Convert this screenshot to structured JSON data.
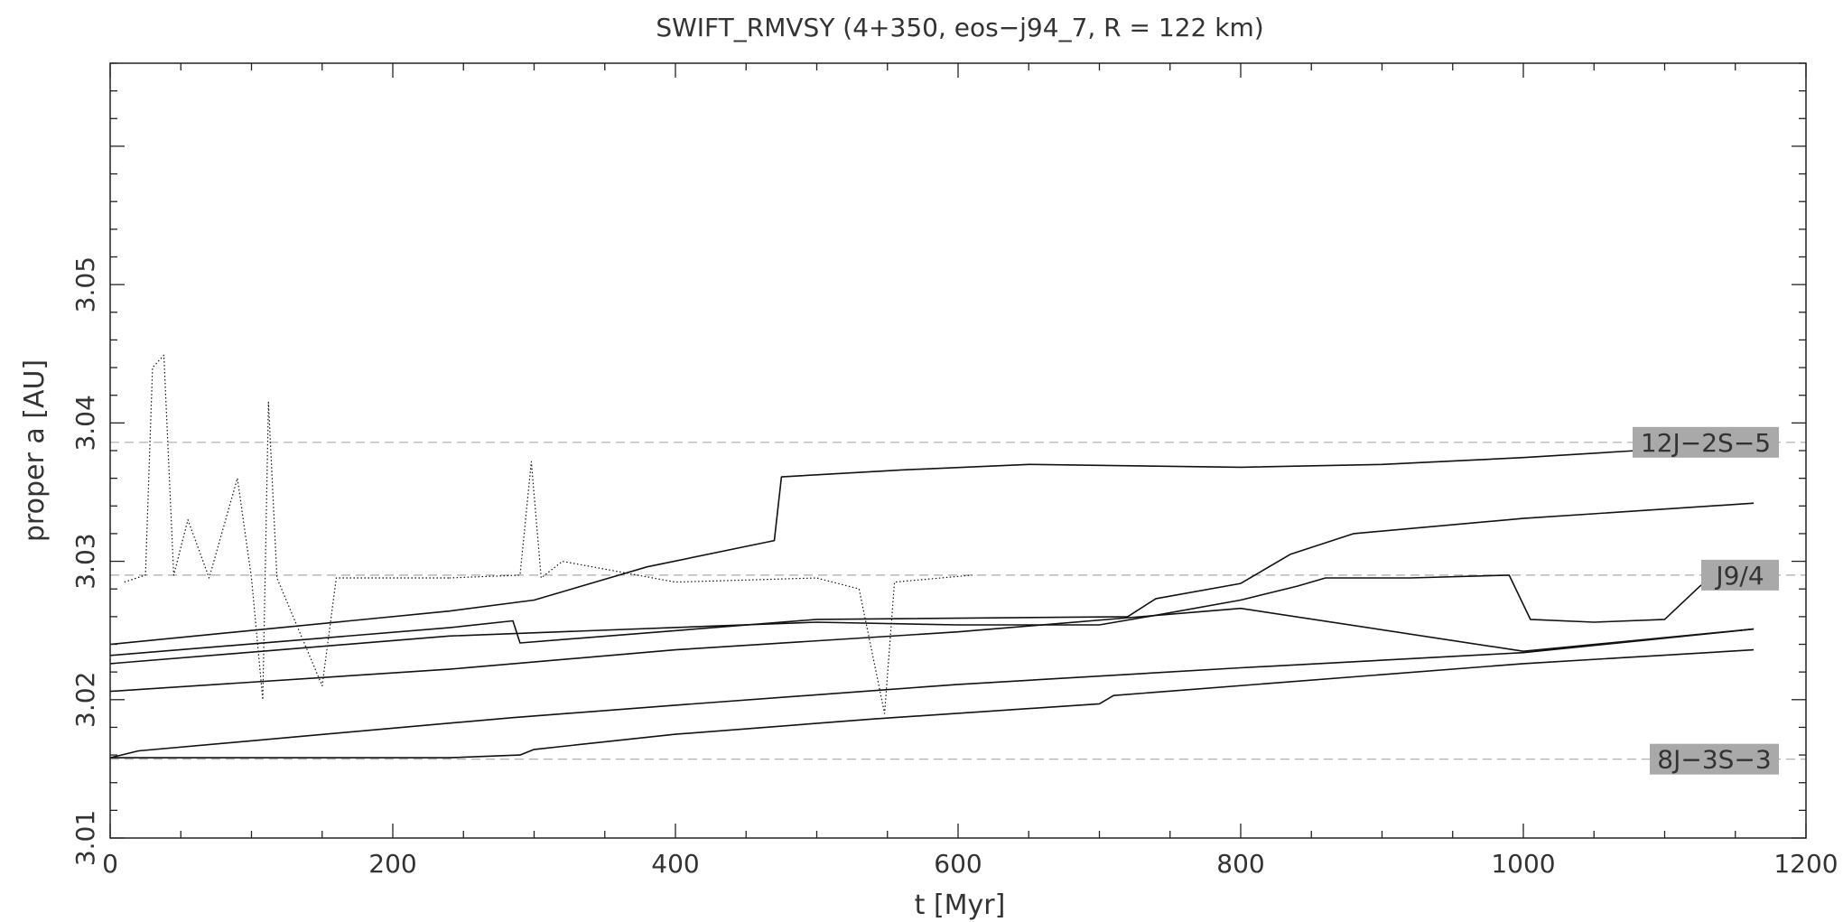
{
  "chart_data": {
    "type": "line",
    "title": "SWIFT_RMVSY (4+350, eos−j94_7, R = 122 km)",
    "xlabel": "t [Myr]",
    "ylabel": "proper a [AU]",
    "xlim": [
      0,
      1200
    ],
    "ylim": [
      3.01,
      3.066
    ],
    "x_ticks": [
      0,
      200,
      400,
      600,
      800,
      1000,
      1200
    ],
    "x_tick_labels": [
      "0",
      "200",
      "400",
      "600",
      "800",
      "1000",
      "1200"
    ],
    "y_ticks": [
      3.01,
      3.02,
      3.03,
      3.04,
      3.05
    ],
    "y_tick_labels": [
      "3.01",
      "3.02",
      "3.03",
      "3.04",
      "3.05"
    ],
    "grid": false,
    "resonances": [
      {
        "label": "12J−2S−5",
        "a": 3.0386
      },
      {
        "label": "J9/4",
        "a": 3.029
      },
      {
        "label": "8J−3S−3",
        "a": 3.0157
      }
    ],
    "series": [
      {
        "style": "solid",
        "points": [
          [
            0,
            3.024
          ],
          [
            240,
            3.0264
          ],
          [
            300,
            3.0272
          ],
          [
            380,
            3.0296
          ],
          [
            470,
            3.0315
          ],
          [
            475,
            3.0361
          ],
          [
            560,
            3.0366
          ],
          [
            650,
            3.037
          ],
          [
            800,
            3.0368
          ],
          [
            900,
            3.037
          ],
          [
            1000,
            3.0375
          ],
          [
            1080,
            3.038
          ]
        ]
      },
      {
        "style": "solid",
        "points": [
          [
            0,
            3.0232
          ],
          [
            240,
            3.0252
          ],
          [
            285,
            3.0257
          ],
          [
            290,
            3.0241
          ],
          [
            500,
            3.0258
          ],
          [
            720,
            3.026
          ],
          [
            740,
            3.0273
          ],
          [
            800,
            3.0284
          ],
          [
            835,
            3.0305
          ],
          [
            880,
            3.032
          ],
          [
            1000,
            3.0331
          ],
          [
            1163,
            3.0342
          ]
        ]
      },
      {
        "style": "solid",
        "points": [
          [
            0,
            3.0226
          ],
          [
            240,
            3.0246
          ],
          [
            500,
            3.0256
          ],
          [
            600,
            3.0254
          ],
          [
            700,
            3.0254
          ],
          [
            740,
            3.0261
          ],
          [
            800,
            3.0272
          ],
          [
            840,
            3.0282
          ],
          [
            860,
            3.0288
          ],
          [
            920,
            3.0288
          ],
          [
            990,
            3.029
          ],
          [
            1005,
            3.0258
          ],
          [
            1050,
            3.0256
          ],
          [
            1100,
            3.0258
          ],
          [
            1125,
            3.0282
          ],
          [
            1135,
            3.029
          ]
        ]
      },
      {
        "style": "solid",
        "points": [
          [
            0,
            3.0206
          ],
          [
            240,
            3.0222
          ],
          [
            400,
            3.0236
          ],
          [
            600,
            3.0249
          ],
          [
            800,
            3.0266
          ],
          [
            1000,
            3.0235
          ],
          [
            1163,
            3.0251
          ]
        ]
      },
      {
        "style": "solid",
        "points": [
          [
            0,
            3.0158
          ],
          [
            20,
            3.0163
          ],
          [
            240,
            3.0183
          ],
          [
            285,
            3.0187
          ],
          [
            400,
            3.0196
          ],
          [
            600,
            3.0211
          ],
          [
            800,
            3.0223
          ],
          [
            1000,
            3.0234
          ],
          [
            1163,
            3.0251
          ]
        ]
      },
      {
        "style": "solid",
        "points": [
          [
            0,
            3.0158
          ],
          [
            240,
            3.0158
          ],
          [
            290,
            3.016
          ],
          [
            300,
            3.0164
          ],
          [
            400,
            3.0175
          ],
          [
            540,
            3.0186
          ],
          [
            700,
            3.0197
          ],
          [
            710,
            3.0203
          ],
          [
            1000,
            3.0226
          ],
          [
            1163,
            3.0236
          ]
        ]
      },
      {
        "style": "dotted",
        "points": [
          [
            10,
            3.0285
          ],
          [
            25,
            3.029
          ],
          [
            30,
            3.044
          ],
          [
            38,
            3.0449
          ],
          [
            45,
            3.029
          ],
          [
            55,
            3.033
          ],
          [
            70,
            3.0288
          ],
          [
            90,
            3.036
          ],
          [
            100,
            3.0288
          ],
          [
            108,
            3.02
          ],
          [
            112,
            3.0415
          ],
          [
            118,
            3.0288
          ],
          [
            150,
            3.021
          ],
          [
            160,
            3.0288
          ],
          [
            240,
            3.0288
          ]
        ]
      },
      {
        "style": "dotted",
        "points": [
          [
            240,
            3.0288
          ],
          [
            290,
            3.029
          ],
          [
            298,
            3.0372
          ],
          [
            305,
            3.0288
          ],
          [
            320,
            3.03
          ],
          [
            400,
            3.0285
          ],
          [
            500,
            3.0288
          ],
          [
            530,
            3.028
          ],
          [
            548,
            3.019
          ],
          [
            555,
            3.0285
          ],
          [
            610,
            3.029
          ]
        ]
      }
    ]
  }
}
